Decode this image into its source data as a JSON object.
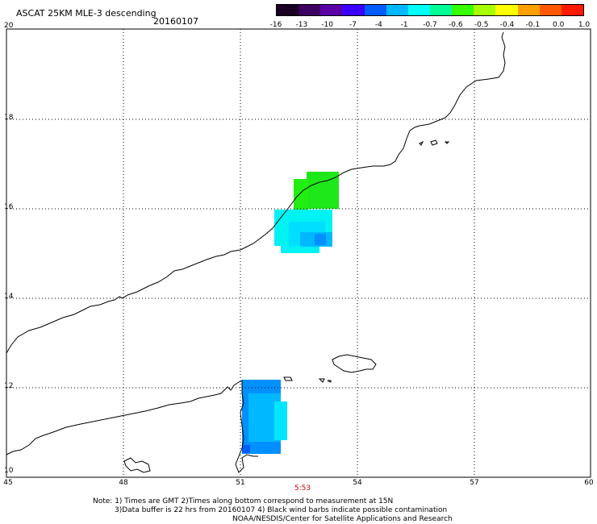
{
  "header": {
    "title": "ASCAT 25KM MLE-3 descending",
    "date": "20160107"
  },
  "colorbar": {
    "labels": [
      "-16",
      "-13",
      "-10",
      "-7",
      "-4",
      "-1",
      "-0.7",
      "-0.6",
      "-0.5",
      "-0.4",
      "-0.1",
      "0.0",
      "1.0"
    ],
    "colors": [
      "#1a0022",
      "#3b0060",
      "#5a00a6",
      "#3a00ff",
      "#005cff",
      "#00b8ff",
      "#00ffff",
      "#00ff96",
      "#36ff00",
      "#a8ff00",
      "#ffff00",
      "#ffa000",
      "#ff5a00",
      "#ff1a00"
    ]
  },
  "map": {
    "lat_range": [
      10,
      20
    ],
    "lon_range": [
      45,
      60
    ],
    "lat_labels": [
      "20",
      "18",
      "16",
      "14",
      "12",
      "10"
    ],
    "lon_labels": [
      "45",
      "48",
      "51",
      "54",
      "57",
      "60"
    ],
    "pass_time": "5:53",
    "data_colors": {
      "green": "#22ee11",
      "cyan": "#00f2f2",
      "light_blue": "#00b8ff",
      "blue": "#0090ff"
    }
  },
  "notes": {
    "line1": "Note: 1) Times are GMT 2)Times along bottom correspond to measurement at 15N",
    "line2": "3)Data buffer is 22 hrs from 20160107 4) Black wind barbs indicate possible contamination",
    "line3": "NOAA/NESDIS/Center for Satellite Applications and Research"
  }
}
